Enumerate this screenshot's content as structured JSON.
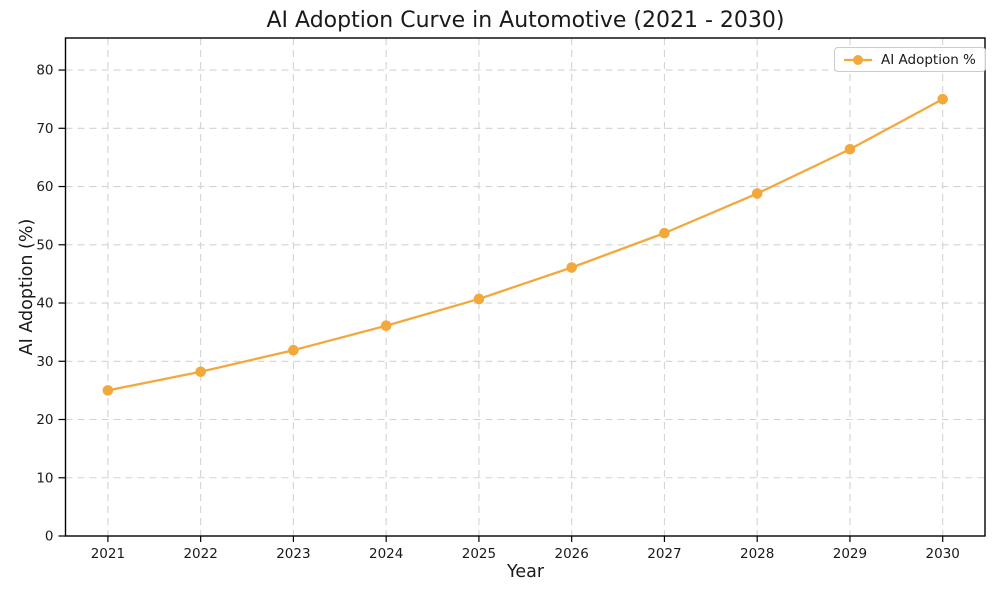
{
  "chart_data": {
    "type": "line",
    "title": "AI Adoption Curve in Automotive (2021 - 2030)",
    "xlabel": "Year",
    "ylabel": "AI Adoption (%)",
    "categories": [
      "2021",
      "2022",
      "2023",
      "2024",
      "2025",
      "2026",
      "2027",
      "2028",
      "2029",
      "2030"
    ],
    "series": [
      {
        "name": "AI Adoption %",
        "values": [
          25.0,
          28.2,
          31.9,
          36.1,
          40.7,
          46.1,
          52.0,
          58.8,
          66.4,
          75.0
        ]
      }
    ],
    "yticks": [
      0,
      10,
      20,
      30,
      40,
      50,
      60,
      70,
      80
    ],
    "ylim": [
      0,
      85.5
    ],
    "grid": true,
    "grid_style": "dashed",
    "marker": "circle",
    "legend_position": "upper right",
    "colors": {
      "line": "#F3A83C",
      "grid": "#d3d3d3",
      "spine": "#000000",
      "text": "#1a1a1a",
      "legend_border": "#cccccc",
      "background": "#ffffff"
    }
  }
}
